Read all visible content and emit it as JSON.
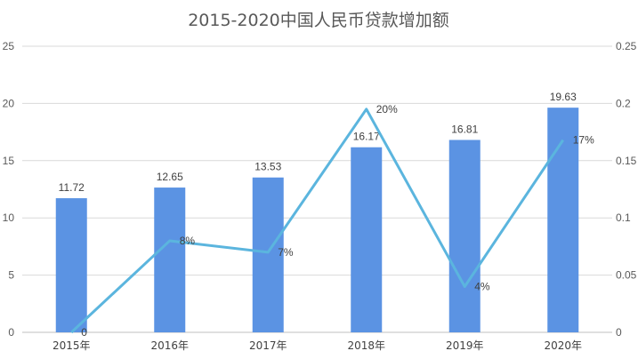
{
  "chart_data": {
    "type": "bar",
    "title": "2015-2020中国人民币贷款增加额",
    "categories": [
      "2015年",
      "2016年",
      "2017年",
      "2018年",
      "2019年",
      "2020年"
    ],
    "series": [
      {
        "type": "bar",
        "axis": "left",
        "values": [
          11.72,
          12.65,
          13.53,
          16.17,
          16.81,
          19.63
        ],
        "labels": [
          "11.72",
          "12.65",
          "13.53",
          "16.17",
          "16.81",
          "19.63"
        ],
        "color": "#5b93e3"
      },
      {
        "type": "line",
        "axis": "right",
        "values": [
          0,
          0.08,
          0.07,
          0.195,
          0.04,
          0.168
        ],
        "labels": [
          "0",
          "8%",
          "7%",
          "20%",
          "4%",
          "17%"
        ],
        "color": "#5bb5de"
      }
    ],
    "y_left": {
      "range": [
        0,
        25
      ],
      "ticks": [
        "0",
        "5",
        "10",
        "15",
        "20",
        "25"
      ]
    },
    "y_right": {
      "range": [
        0,
        0.25
      ],
      "ticks": [
        "0",
        "0.05",
        "0.1",
        "0.15",
        "0.2",
        "0.25"
      ]
    },
    "grid": true,
    "legend": "none"
  }
}
